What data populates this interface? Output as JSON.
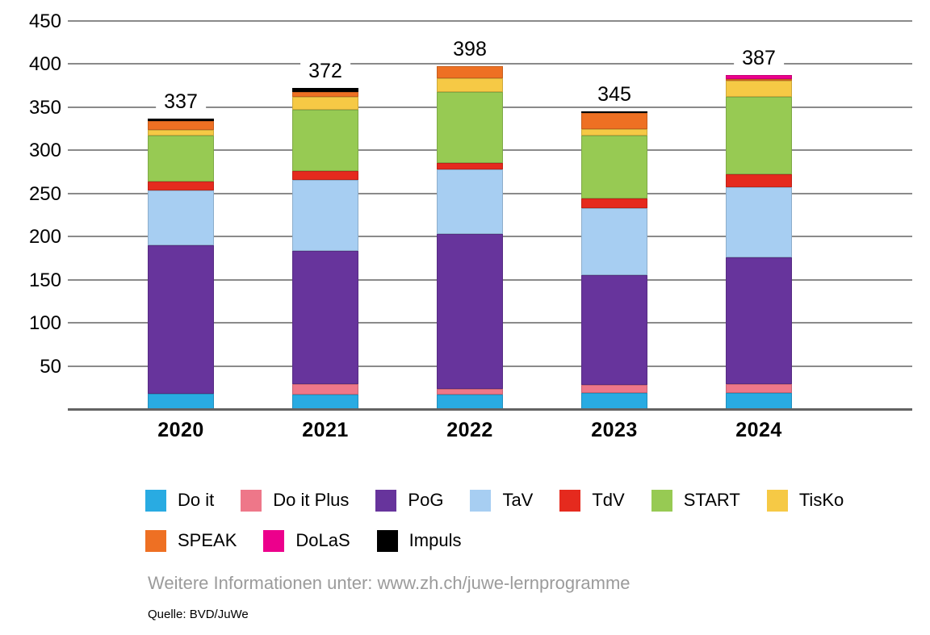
{
  "chart_data": {
    "type": "bar",
    "stacked": true,
    "title": "",
    "xlabel": "",
    "ylabel": "",
    "categories": [
      "2020",
      "2021",
      "2022",
      "2023",
      "2024"
    ],
    "totals": [
      337,
      372,
      398,
      345,
      387
    ],
    "series": [
      {
        "name": "Do it",
        "color": "#29ABE2",
        "values": [
          18,
          17,
          17,
          19,
          19
        ]
      },
      {
        "name": "Do it Plus",
        "color": "#EE7789",
        "values": [
          0,
          12,
          6,
          9,
          10
        ]
      },
      {
        "name": "PoG",
        "color": "#67349C",
        "values": [
          172,
          154,
          180,
          127,
          147
        ]
      },
      {
        "name": "TaV",
        "color": "#A7CEF2",
        "values": [
          64,
          83,
          75,
          78,
          81
        ]
      },
      {
        "name": "TdV",
        "color": "#E52A1E",
        "values": [
          10,
          10,
          7,
          11,
          15
        ]
      },
      {
        "name": "START",
        "color": "#97CA53",
        "values": [
          53,
          71,
          83,
          73,
          90
        ]
      },
      {
        "name": "TisKo",
        "color": "#F6C945",
        "values": [
          7,
          15,
          16,
          8,
          19
        ]
      },
      {
        "name": "SPEAK",
        "color": "#EE7023",
        "values": [
          10,
          6,
          14,
          18,
          2
        ]
      },
      {
        "name": "DoLaS",
        "color": "#EC008C",
        "values": [
          0,
          0,
          0,
          0,
          4
        ]
      },
      {
        "name": "Impuls",
        "color": "#000000",
        "values": [
          3,
          4,
          0,
          2,
          0
        ]
      }
    ],
    "ylim": [
      0,
      450
    ],
    "ytick_step": 50,
    "yticks": [
      0,
      50,
      100,
      150,
      200,
      250,
      300,
      350,
      400,
      450
    ],
    "grid": true,
    "legend_position": "bottom",
    "legend_row_split": 7
  },
  "footer": {
    "info_text": "Weitere Informationen unter: www.zh.ch/juwe-lernprogramme",
    "source_text": "Quelle: BVD/JuWe"
  }
}
